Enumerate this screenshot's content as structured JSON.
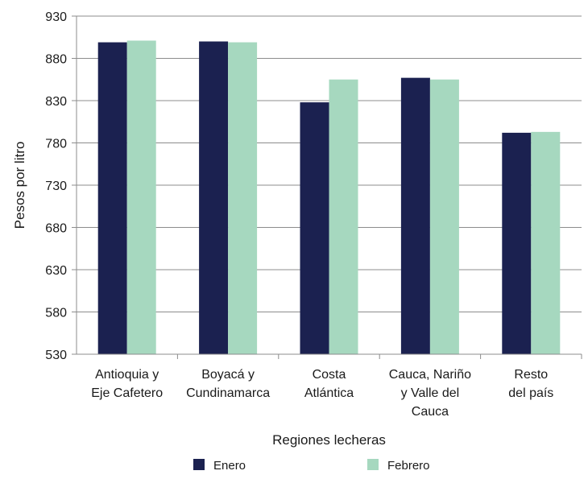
{
  "chart_data": {
    "type": "bar",
    "xlabel": "Regiones lecheras",
    "ylabel": "Pesos por litro",
    "ylim": [
      530,
      930
    ],
    "yticks": [
      530,
      580,
      630,
      680,
      730,
      780,
      830,
      880,
      930
    ],
    "grid": true,
    "legend_position": "bottom",
    "categories": [
      [
        "Antioquia y",
        "Eje Cafetero"
      ],
      [
        "Boyacá y",
        "Cundinamarca"
      ],
      [
        "Costa",
        "Atlántica"
      ],
      [
        "Cauca, Nariño",
        "y Valle del",
        "Cauca"
      ],
      [
        "Resto",
        "del país"
      ]
    ],
    "series": [
      {
        "name": "Enero",
        "color": "#1b2150",
        "values": [
          899,
          900,
          828,
          857,
          792
        ]
      },
      {
        "name": "Febrero",
        "color": "#a6d8bf",
        "values": [
          901,
          899,
          855,
          855,
          793
        ]
      }
    ]
  }
}
